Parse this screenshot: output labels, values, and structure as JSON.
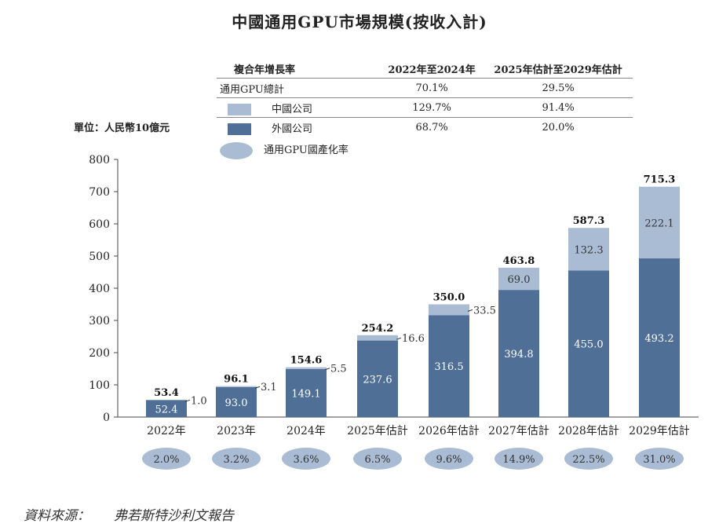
{
  "title": "中國通用GPU市場規模(按收入計)",
  "unit_label": "單位：人民幣10億元",
  "cagr_table": {
    "headers": [
      "複合年增長率",
      "2022年至2024年",
      "2025年估計至2029年估計"
    ],
    "rows": [
      {
        "label": "通用GPU總計",
        "values": [
          "70.1%",
          "29.5%"
        ]
      },
      {
        "label": "中國公司",
        "values": [
          "129.7%",
          "91.4%"
        ],
        "swatch": "#a9bcd3"
      },
      {
        "label": "外國公司",
        "values": [
          "68.7%",
          "20.0%"
        ],
        "swatch": "#4f6f96"
      }
    ]
  },
  "legend_ellipse_label": "通用GPU國產化率",
  "source": {
    "label": "資料來源：",
    "value": "弗若斯特沙利文報告"
  },
  "chart_data": {
    "type": "bar",
    "stacked": true,
    "categories": [
      "2022年",
      "2023年",
      "2024年",
      "2025年估計",
      "2026年估計",
      "2027年估計",
      "2028年估計",
      "2029年估計"
    ],
    "series": [
      {
        "name": "外國公司",
        "color": "#4f6f96",
        "values": [
          52.4,
          93.0,
          149.1,
          237.6,
          316.5,
          394.8,
          455.0,
          493.2
        ],
        "labels": [
          "52.4",
          "93.0",
          "149.1",
          "237.6",
          "316.5",
          "394.8",
          "455.0",
          "493.2"
        ]
      },
      {
        "name": "中國公司",
        "color": "#a9bcd3",
        "values": [
          1.0,
          3.1,
          5.5,
          16.6,
          33.5,
          69.0,
          132.3,
          222.1
        ],
        "labels": [
          "1.0",
          "3.1",
          "5.5",
          "16.6",
          "33.5",
          "69.0",
          "132.3",
          "222.1"
        ]
      }
    ],
    "totals": [
      "53.4",
      "96.1",
      "154.6",
      "254.2",
      "350.0",
      "463.8",
      "587.3",
      "715.3"
    ],
    "localization_rate": [
      "2.0%",
      "3.2%",
      "3.6%",
      "6.5%",
      "9.6%",
      "14.9%",
      "22.5%",
      "31.0%"
    ],
    "ylim": [
      0,
      800
    ],
    "yticks": [
      "0",
      "100",
      "200",
      "300",
      "400",
      "500",
      "600",
      "700",
      "800"
    ],
    "grid": false
  }
}
